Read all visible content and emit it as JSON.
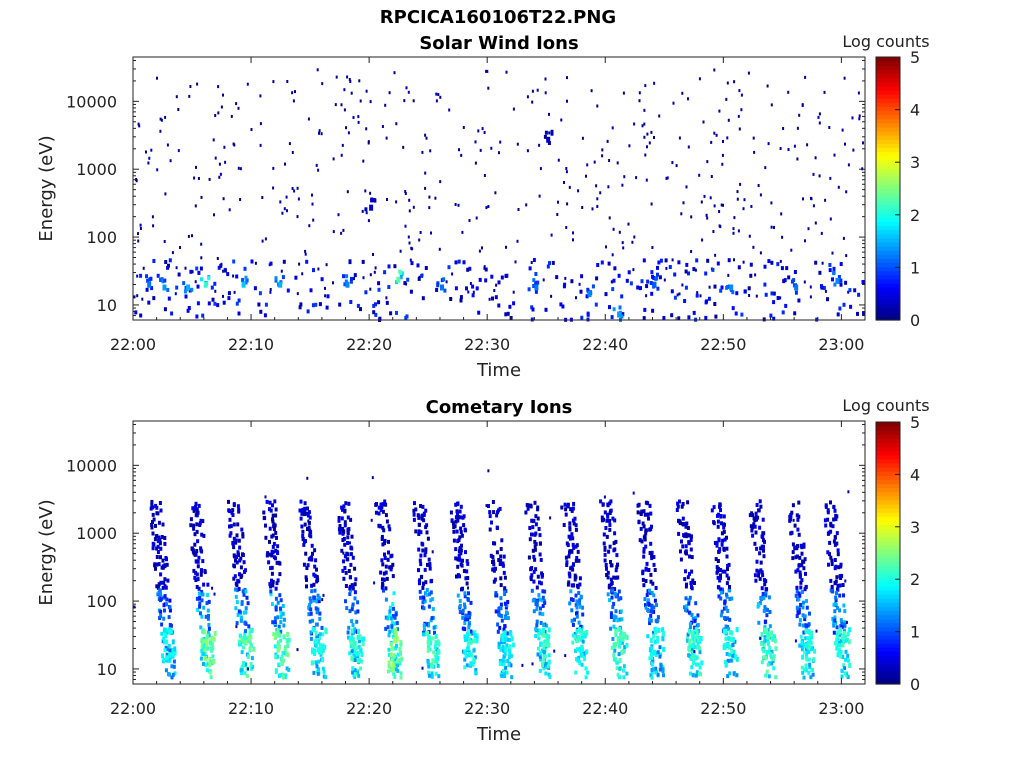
{
  "figure": {
    "title": "RPCICA160106T22.PNG"
  },
  "chart_data": [
    {
      "type": "heatmap",
      "title": "Solar Wind Ions",
      "xlabel": "Time",
      "ylabel": "Energy (eV)",
      "x_ticks": [
        "22:00",
        "22:10",
        "22:20",
        "22:30",
        "22:40",
        "22:50",
        "23:00"
      ],
      "y_ticks": [
        "10",
        "100",
        "1000",
        "10000"
      ],
      "y_scale": "log",
      "ylim": [
        6,
        45000
      ],
      "xlim_minutes": [
        0,
        62
      ],
      "colorbar": {
        "label": "Log counts",
        "ticks": [
          "0",
          "1",
          "2",
          "3",
          "4",
          "5"
        ],
        "range": [
          0,
          5
        ],
        "colormap": "jet"
      },
      "cells": [
        {
          "t": 1.2,
          "e": 22,
          "v": 1.2
        },
        {
          "t": 2.5,
          "e": 20,
          "v": 1.4
        },
        {
          "t": 4.5,
          "e": 20,
          "v": 1.5
        },
        {
          "t": 6.0,
          "e": 22,
          "v": 2.1
        },
        {
          "t": 9.2,
          "e": 22,
          "v": 1.6
        },
        {
          "t": 12.3,
          "e": 22,
          "v": 1.5
        },
        {
          "t": 18.0,
          "e": 22,
          "v": 1.3
        },
        {
          "t": 22.3,
          "e": 26,
          "v": 2.3
        },
        {
          "t": 26.0,
          "e": 20,
          "v": 1.2
        },
        {
          "t": 34.0,
          "e": 20,
          "v": 1.2
        },
        {
          "t": 38.5,
          "e": 16,
          "v": 1.3
        },
        {
          "t": 41.0,
          "e": 8,
          "v": 1.4
        },
        {
          "t": 44.0,
          "e": 22,
          "v": 1.1
        },
        {
          "t": 50.5,
          "e": 20,
          "v": 1.3
        },
        {
          "t": 56.0,
          "e": 20,
          "v": 1.2
        },
        {
          "t": 59.5,
          "e": 25,
          "v": 1.3
        },
        {
          "t": 20.0,
          "e": 300,
          "v": 0.4
        },
        {
          "t": 35.0,
          "e": 3000,
          "v": 0.3
        }
      ]
    },
    {
      "type": "heatmap",
      "title": "Cometary Ions",
      "xlabel": "Time",
      "ylabel": "Energy (eV)",
      "x_ticks": [
        "22:00",
        "22:10",
        "22:20",
        "22:30",
        "22:40",
        "22:50",
        "23:00"
      ],
      "y_ticks": [
        "10",
        "100",
        "1000",
        "10000"
      ],
      "y_scale": "log",
      "ylim": [
        6,
        45000
      ],
      "xlim_minutes": [
        0,
        62
      ],
      "colorbar": {
        "label": "Log counts",
        "ticks": [
          "0",
          "1",
          "2",
          "3",
          "4",
          "5"
        ],
        "range": [
          0,
          5
        ],
        "colormap": "jet"
      },
      "bursts_minutes": [
        2.7,
        6.0,
        9.3,
        12.3,
        15.4,
        18.6,
        21.8,
        25.0,
        28.2,
        31.3,
        34.5,
        37.6,
        40.9,
        44.0,
        47.3,
        50.3,
        53.5,
        56.8,
        59.8
      ],
      "burst_energy_range_eV": [
        7,
        3500
      ],
      "burst_peak_log_counts": [
        2.0,
        2.6,
        2.5,
        2.6,
        2.2,
        2.3,
        2.8,
        2.4,
        2.2,
        2.1,
        2.3,
        2.2,
        2.4,
        2.1,
        2.3,
        2.2,
        2.4,
        2.2,
        2.3
      ]
    }
  ]
}
